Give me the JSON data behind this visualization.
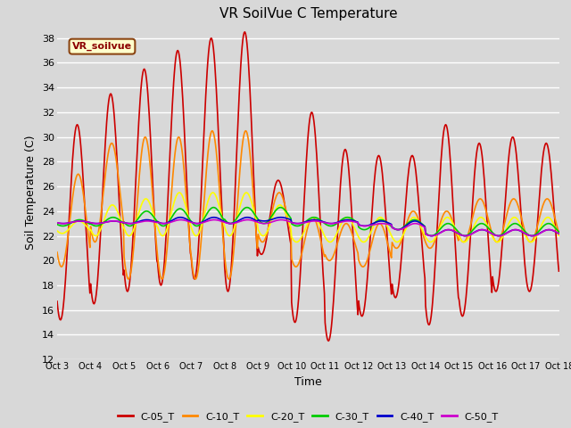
{
  "title": "VR SoilVue C Temperature",
  "ylabel": "Soil Temperature (C)",
  "xlabel": "Time",
  "ylim": [
    12,
    39
  ],
  "yticks": [
    12,
    14,
    16,
    18,
    20,
    22,
    24,
    26,
    28,
    30,
    32,
    34,
    36,
    38
  ],
  "x_labels": [
    "Oct 3",
    "Oct 4",
    "Oct 5",
    "Oct 6",
    "Oct 7",
    "Oct 8",
    "Oct 9",
    "Oct 10",
    "Oct 11",
    "Oct 12",
    "Oct 13",
    "Oct 14",
    "Oct 15",
    "Oct 16",
    "Oct 17",
    "Oct 18"
  ],
  "annotation_text": "VR_soilvue",
  "bg_color": "#d8d8d8",
  "plot_bg_color": "#d8d8d8",
  "grid_color": "#ffffff",
  "series": {
    "C-05_T": {
      "color": "#cc0000",
      "lw": 1.2
    },
    "C-10_T": {
      "color": "#ff8800",
      "lw": 1.2
    },
    "C-20_T": {
      "color": "#ffff00",
      "lw": 1.2
    },
    "C-30_T": {
      "color": "#00cc00",
      "lw": 1.2
    },
    "C-40_T": {
      "color": "#0000cc",
      "lw": 1.2
    },
    "C-50_T": {
      "color": "#cc00cc",
      "lw": 1.2
    }
  },
  "c05_mins": [
    15.2,
    16.5,
    17.5,
    18.0,
    18.5,
    17.5,
    20.5,
    15.0,
    13.5,
    15.5,
    17.0,
    14.8,
    15.5,
    17.5,
    17.5
  ],
  "c05_maxs": [
    31.0,
    33.5,
    35.5,
    37.0,
    38.0,
    38.5,
    26.5,
    32.0,
    29.0,
    28.5,
    28.5,
    31.0,
    29.5,
    30.0,
    29.5
  ],
  "c10_mins": [
    19.5,
    21.5,
    18.5,
    18.5,
    18.5,
    18.5,
    21.5,
    19.5,
    20.0,
    19.5,
    21.0,
    21.0,
    21.5,
    21.5,
    21.5
  ],
  "c10_maxs": [
    27.0,
    29.5,
    30.0,
    30.0,
    30.5,
    30.5,
    25.5,
    23.5,
    23.0,
    23.0,
    24.0,
    24.0,
    25.0,
    25.0,
    25.0
  ],
  "c20_mins": [
    22.2,
    22.0,
    22.0,
    22.0,
    22.0,
    22.0,
    22.0,
    21.5,
    21.5,
    21.5,
    21.5,
    21.5,
    21.5,
    21.5,
    21.5
  ],
  "c20_maxs": [
    23.2,
    24.5,
    25.0,
    25.5,
    25.5,
    25.5,
    24.5,
    23.5,
    23.5,
    23.5,
    23.5,
    23.5,
    23.5,
    23.5,
    23.5
  ],
  "c30_mins": [
    22.8,
    22.8,
    22.8,
    22.8,
    22.8,
    23.0,
    23.0,
    22.8,
    22.8,
    22.5,
    22.5,
    22.0,
    22.0,
    22.0,
    22.0
  ],
  "c30_maxs": [
    23.3,
    23.5,
    24.0,
    24.2,
    24.3,
    24.3,
    24.3,
    23.5,
    23.5,
    23.3,
    23.3,
    23.0,
    23.0,
    23.0,
    23.0
  ],
  "c40_mins": [
    23.0,
    23.0,
    23.0,
    23.0,
    23.0,
    23.0,
    23.2,
    23.0,
    23.0,
    22.8,
    22.5,
    22.0,
    22.0,
    22.0,
    22.0
  ],
  "c40_maxs": [
    23.2,
    23.2,
    23.3,
    23.5,
    23.5,
    23.5,
    23.5,
    23.3,
    23.3,
    23.2,
    23.2,
    22.5,
    22.5,
    22.5,
    22.5
  ],
  "c50_mins": [
    23.0,
    23.0,
    23.0,
    23.0,
    23.0,
    23.0,
    23.0,
    23.0,
    23.0,
    22.8,
    22.5,
    22.0,
    22.0,
    22.0,
    22.0
  ],
  "c50_maxs": [
    23.2,
    23.2,
    23.2,
    23.3,
    23.3,
    23.3,
    23.3,
    23.2,
    23.2,
    23.0,
    23.0,
    22.5,
    22.5,
    22.5,
    22.5
  ]
}
